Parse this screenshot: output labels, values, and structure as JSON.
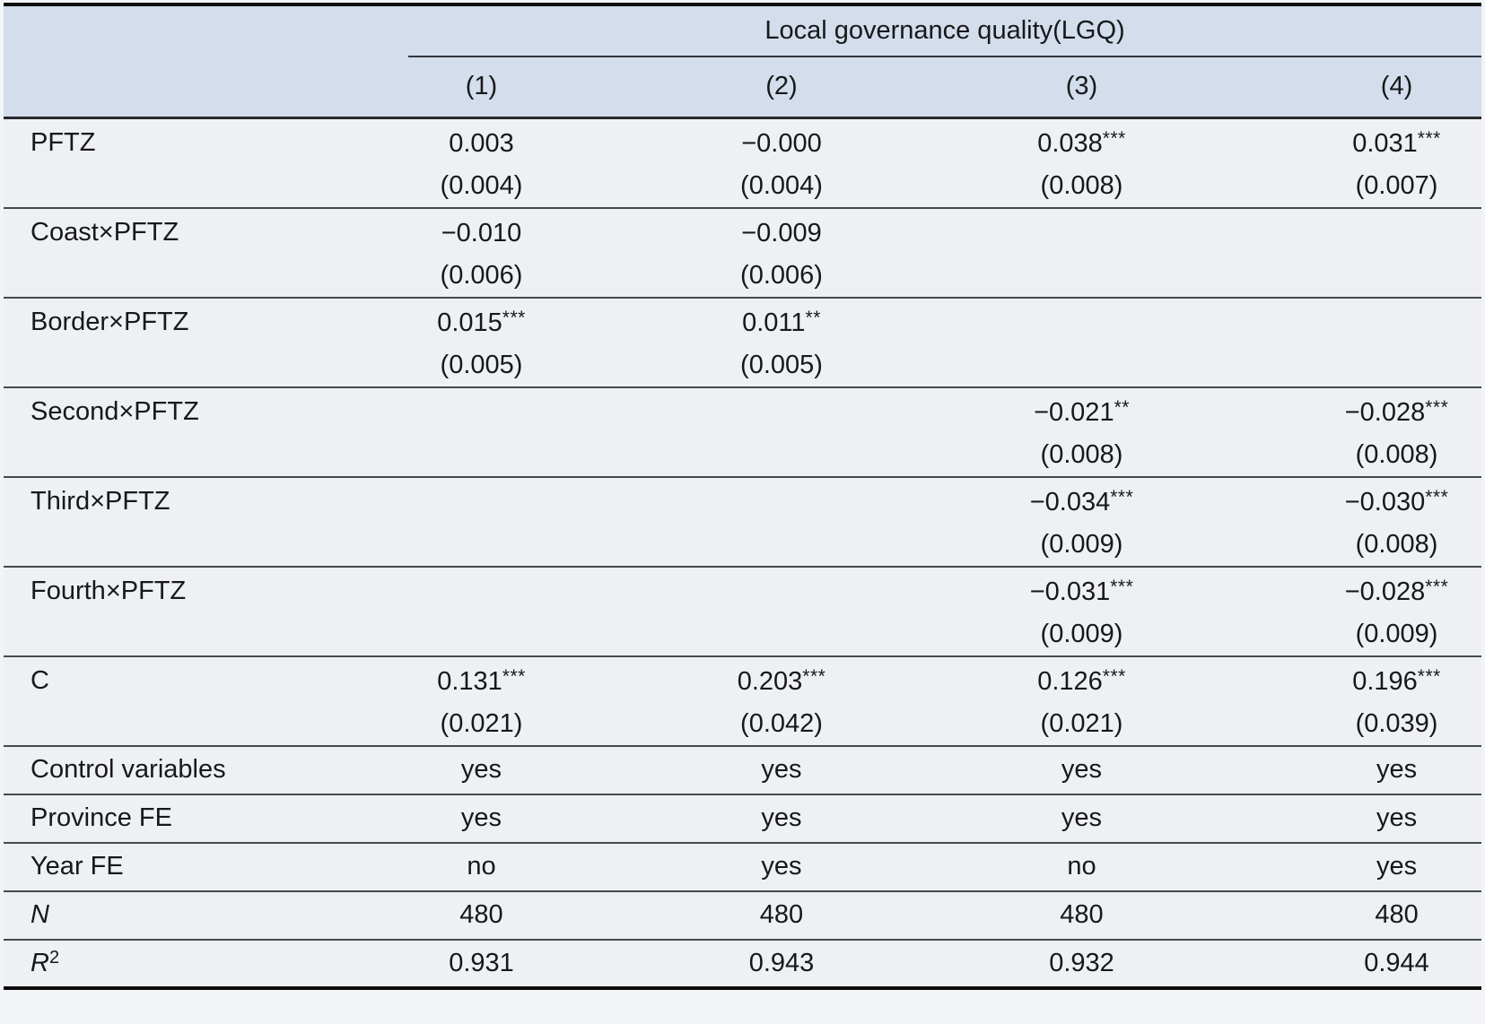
{
  "table": {
    "header": {
      "group_title": "Local governance quality(LGQ)",
      "columns": [
        "(1)",
        "(2)",
        "(3)",
        "(4)"
      ]
    },
    "rows": [
      {
        "label": "PFTZ",
        "cells": [
          {
            "coef": "0.003",
            "stars": "",
            "se": "(0.004)"
          },
          {
            "coef": "−0.000",
            "stars": "",
            "se": "(0.004)"
          },
          {
            "coef": "0.038",
            "stars": "***",
            "se": "(0.008)"
          },
          {
            "coef": "0.031",
            "stars": "***",
            "se": "(0.007)"
          }
        ]
      },
      {
        "label": "Coast×PFTZ",
        "cells": [
          {
            "coef": "−0.010",
            "stars": "",
            "se": "(0.006)"
          },
          {
            "coef": "−0.009",
            "stars": "",
            "se": "(0.006)"
          },
          null,
          null
        ]
      },
      {
        "label": "Border×PFTZ",
        "cells": [
          {
            "coef": "0.015",
            "stars": "***",
            "se": "(0.005)"
          },
          {
            "coef": "0.011",
            "stars": "**",
            "se": "(0.005)"
          },
          null,
          null
        ]
      },
      {
        "label": "Second×PFTZ",
        "cells": [
          null,
          null,
          {
            "coef": "−0.021",
            "stars": "**",
            "se": "(0.008)"
          },
          {
            "coef": "−0.028",
            "stars": "***",
            "se": "(0.008)"
          }
        ]
      },
      {
        "label": "Third×PFTZ",
        "cells": [
          null,
          null,
          {
            "coef": "−0.034",
            "stars": "***",
            "se": "(0.009)"
          },
          {
            "coef": "−0.030",
            "stars": "***",
            "se": "(0.008)"
          }
        ]
      },
      {
        "label": "Fourth×PFTZ",
        "cells": [
          null,
          null,
          {
            "coef": "−0.031",
            "stars": "***",
            "se": "(0.009)"
          },
          {
            "coef": "−0.028",
            "stars": "***",
            "se": "(0.009)"
          }
        ]
      },
      {
        "label": "C",
        "cells": [
          {
            "coef": "0.131",
            "stars": "***",
            "se": "(0.021)"
          },
          {
            "coef": "0.203",
            "stars": "***",
            "se": "(0.042)"
          },
          {
            "coef": "0.126",
            "stars": "***",
            "se": "(0.021)"
          },
          {
            "coef": "0.196",
            "stars": "***",
            "se": "(0.039)"
          }
        ]
      },
      {
        "label": "Control variables",
        "cells": [
          "yes",
          "yes",
          "yes",
          "yes"
        ]
      },
      {
        "label": "Province FE",
        "cells": [
          "yes",
          "yes",
          "yes",
          "yes"
        ]
      },
      {
        "label": "Year FE",
        "cells": [
          "no",
          "yes",
          "no",
          "yes"
        ]
      },
      {
        "label": "N",
        "label_italic": true,
        "cells": [
          "480",
          "480",
          "480",
          "480"
        ]
      },
      {
        "label": "R",
        "label_italic": true,
        "label_sup": "2",
        "cells": [
          "0.931",
          "0.943",
          "0.932",
          "0.944"
        ]
      }
    ]
  },
  "colors": {
    "header_bg": "#d3ddeb",
    "body_bg": "#eef0f4",
    "thick_border": "#0b0b0c",
    "row_rule": "#45484e",
    "text": "#17181a"
  }
}
